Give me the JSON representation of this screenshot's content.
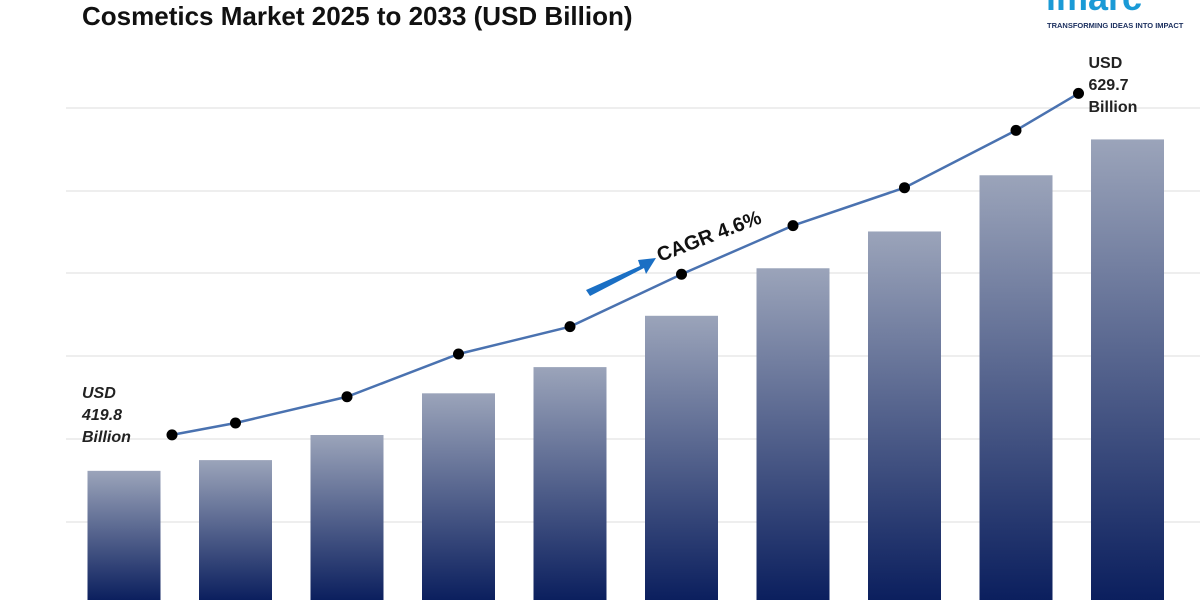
{
  "chart_data": {
    "type": "bar",
    "title": "Cosmetics Market 2025 to 2033 (USD Billion)",
    "values": [
      419.8,
      426.6,
      442.5,
      468.9,
      485.5,
      518.0,
      548.1,
      571.4,
      607.0,
      629.7
    ],
    "value_labels": [
      "USD 419.8 Billion",
      null,
      null,
      null,
      null,
      null,
      null,
      null,
      null,
      "USD 629.7 Billion"
    ],
    "ylim": [
      338,
      718
    ],
    "color": "#0b1f5e",
    "line_color": "#4a72b0",
    "annotation": "CAGR 4.6%",
    "logo": "imarc",
    "tagline": "TRANSFORMING IDEAS INTO IMPACT"
  }
}
